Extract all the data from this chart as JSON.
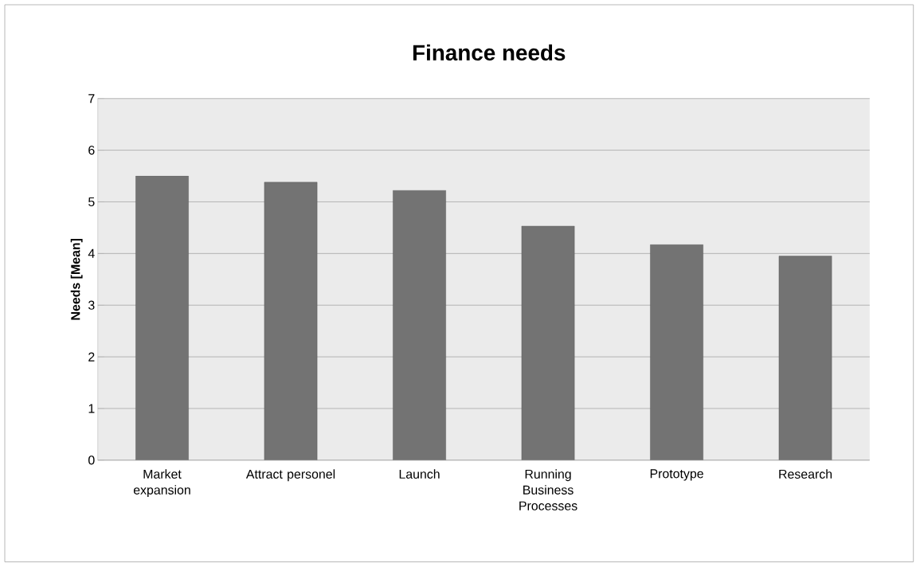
{
  "chart_data": {
    "type": "bar",
    "title": "Finance needs",
    "ylabel": "Needs [Mean]",
    "categories": [
      "Market expansion",
      "Attract personel",
      "Launch",
      "Running Business Processes",
      "Prototype",
      "Research"
    ],
    "values": [
      5.5,
      5.38,
      5.22,
      4.53,
      4.17,
      3.95
    ],
    "color": "#737373",
    "ylim": [
      0,
      7
    ],
    "yticks": [
      0,
      1,
      2,
      3,
      4,
      5,
      6,
      7
    ],
    "grid": true
  }
}
